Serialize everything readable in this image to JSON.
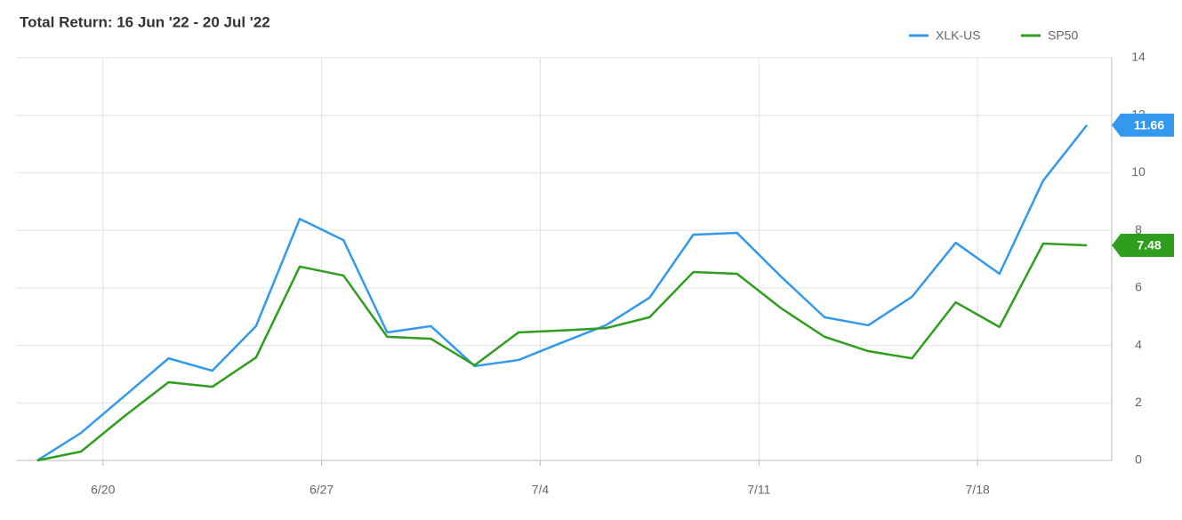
{
  "chart_data": {
    "type": "line",
    "title": "Total Return: 16 Jun '22 - 20 Jul '22",
    "categories": [
      null,
      null,
      "6/20",
      null,
      null,
      null,
      null,
      "6/27",
      null,
      null,
      null,
      null,
      "7/4",
      null,
      null,
      null,
      null,
      "7/11",
      null,
      null,
      null,
      null,
      "7/18",
      null,
      null
    ],
    "series": [
      {
        "name": "XLK-US",
        "color": "#3399ee",
        "values": [
          0,
          0.96,
          2.25,
          3.55,
          3.12,
          4.67,
          8.4,
          7.66,
          4.45,
          4.67,
          3.28,
          3.49,
          4.1,
          4.7,
          5.66,
          7.85,
          7.91,
          6.4,
          4.98,
          4.7,
          5.69,
          7.57,
          6.49,
          9.73,
          11.66
        ]
      },
      {
        "name": "SP50",
        "color": "#2f9e1e",
        "values": [
          0,
          0.31,
          1.55,
          2.72,
          2.56,
          3.58,
          6.74,
          6.43,
          4.3,
          4.23,
          3.31,
          4.45,
          4.52,
          4.6,
          4.98,
          6.55,
          6.49,
          5.3,
          4.3,
          3.8,
          3.55,
          5.5,
          4.64,
          7.54,
          7.48
        ]
      }
    ],
    "ylim": [
      0,
      14
    ],
    "yticks": [
      0,
      2,
      4,
      6,
      8,
      10,
      12,
      14
    ],
    "grid": true,
    "legend": "top-right"
  }
}
